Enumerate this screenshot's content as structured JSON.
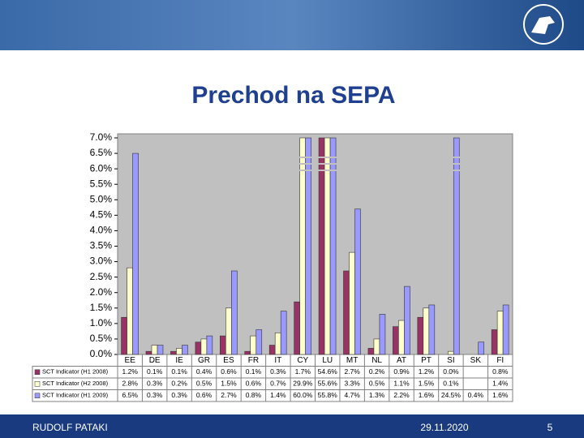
{
  "slide": {
    "title": "Prechod na SEPA",
    "author": "RUDOLF PATAKI",
    "date": "29.11.2020",
    "page": "5"
  },
  "chart_data": {
    "type": "bar",
    "categories": [
      "EE",
      "DE",
      "IE",
      "GR",
      "ES",
      "FR",
      "IT",
      "CY",
      "LU",
      "MT",
      "NL",
      "AT",
      "PT",
      "SI",
      "SK",
      "FI"
    ],
    "series": [
      {
        "name": "SCT Indicator (H1 2008)",
        "color": "#993366",
        "values": [
          1.2,
          0.1,
          0.1,
          0.4,
          0.6,
          0.1,
          0.3,
          1.7,
          54.6,
          2.7,
          0.2,
          0.9,
          1.2,
          0.0,
          null,
          0.8
        ],
        "value_labels": [
          "1.2%",
          "0.1%",
          "0.1%",
          "0.4%",
          "0.6%",
          "0.1%",
          "0.3%",
          "1.7%",
          "54.6%",
          "2.7%",
          "0.2%",
          "0.9%",
          "1.2%",
          "0.0%",
          null,
          "0.8%"
        ]
      },
      {
        "name": "SCT Indicator (H2 2008)",
        "color": "#ffffcc",
        "values": [
          2.8,
          0.3,
          0.2,
          0.5,
          1.5,
          0.6,
          0.7,
          29.9,
          55.6,
          3.3,
          0.5,
          1.1,
          1.5,
          0.1,
          null,
          1.4
        ],
        "value_labels": [
          "2.8%",
          "0.3%",
          "0.2%",
          "0.5%",
          "1.5%",
          "0.6%",
          "0.7%",
          "29.9%",
          "55.6%",
          "3.3%",
          "0.5%",
          "1.1%",
          "1.5%",
          "0.1%",
          null,
          "1.4%"
        ]
      },
      {
        "name": "SCT Indicator (H1 2009)",
        "color": "#9999ff",
        "values": [
          6.5,
          0.3,
          0.3,
          0.6,
          2.7,
          0.8,
          1.4,
          60.0,
          55.8,
          4.7,
          1.3,
          2.2,
          1.6,
          24.5,
          0.4,
          1.6
        ],
        "value_labels": [
          "6.5%",
          "0.3%",
          "0.3%",
          "0.6%",
          "2.7%",
          "0.8%",
          "1.4%",
          "60.0%",
          "55.8%",
          "4.7%",
          "1.3%",
          "2.2%",
          "1.6%",
          "24.5%",
          "0.4%",
          "1.6%"
        ]
      }
    ],
    "ylim": [
      0,
      7
    ],
    "yticks": [
      {
        "value": 0,
        "label": "0.0%"
      },
      {
        "value": 0.5,
        "label": "0.5%"
      },
      {
        "value": 1,
        "label": "1.0%"
      },
      {
        "value": 1.5,
        "label": "1.5%"
      },
      {
        "value": 2,
        "label": "2.0%"
      },
      {
        "value": 2.5,
        "label": "2.5%"
      },
      {
        "value": 3,
        "label": "3.0%"
      },
      {
        "value": 3.5,
        "label": "3.5%"
      },
      {
        "value": 4,
        "label": "4.0%"
      },
      {
        "value": 4.5,
        "label": "4.5%"
      },
      {
        "value": 5,
        "label": "5.0%"
      },
      {
        "value": 5.5,
        "label": "5.5%"
      },
      {
        "value": 6,
        "label": "6.0%"
      },
      {
        "value": 6.5,
        "label": "6.5%"
      },
      {
        "value": 7,
        "label": "7.0%"
      }
    ],
    "grid": false
  }
}
